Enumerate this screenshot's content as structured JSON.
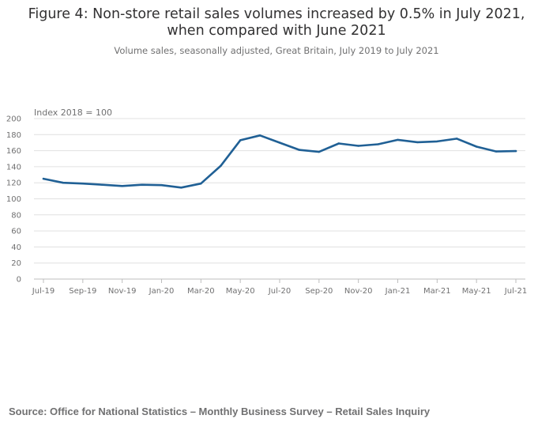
{
  "header": {
    "title_line1": "Figure 4: Non-store retail sales volumes increased by 0.5% in July 2021,",
    "title_line2": "when compared with June 2021",
    "subtitle": "Volume sales, seasonally adjusted, Great Britain, July 2019 to July 2021"
  },
  "footer": {
    "source": "Source: Office for National Statistics – Monthly Business Survey – Retail Sales Inquiry"
  },
  "colors": {
    "line": "#206095",
    "grid": "#e0e0e0",
    "text": "#707071"
  },
  "chart_data": {
    "type": "line",
    "title": "Figure 4: Non-store retail sales volumes increased by 0.5% in July 2021, when compared with June 2021",
    "subtitle": "Volume sales, seasonally adjusted, Great Britain, July 2019 to July 2021",
    "unit_label": "Index 2018 = 100",
    "xlabel": "",
    "ylabel": "",
    "ylim": [
      0,
      200
    ],
    "yticks": [
      0,
      20,
      40,
      60,
      80,
      100,
      120,
      140,
      160,
      180,
      200
    ],
    "grid": true,
    "x": [
      "Jul-19",
      "Aug-19",
      "Sep-19",
      "Oct-19",
      "Nov-19",
      "Dec-19",
      "Jan-20",
      "Feb-20",
      "Mar-20",
      "Apr-20",
      "May-20",
      "Jun-20",
      "Jul-20",
      "Aug-20",
      "Sep-20",
      "Oct-20",
      "Nov-20",
      "Dec-20",
      "Jan-21",
      "Feb-21",
      "Mar-21",
      "Apr-21",
      "May-21",
      "Jun-21",
      "Jul-21"
    ],
    "xtick_labels": [
      "Jul-19",
      "Sep-19",
      "Nov-19",
      "Jan-20",
      "Mar-20",
      "May-20",
      "Jul-20",
      "Sep-20",
      "Nov-20",
      "Jan-21",
      "Mar-21",
      "May-21",
      "Jul-21"
    ],
    "series": [
      {
        "name": "Non-store retail sales volumes",
        "values": [
          125,
          120,
          119,
          117.5,
          116,
          117.5,
          117,
          114,
          119,
          141,
          173,
          179,
          170,
          161,
          158.5,
          169,
          166,
          168,
          173.5,
          170.5,
          171.5,
          175,
          165,
          159,
          159.5
        ]
      }
    ]
  }
}
